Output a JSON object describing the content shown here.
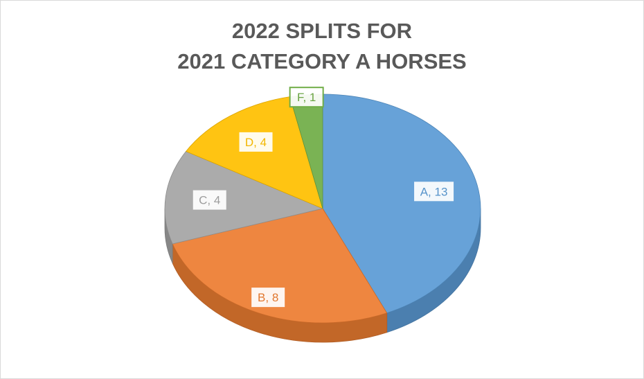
{
  "chart_data": {
    "type": "pie",
    "style": "3d",
    "title_lines": [
      "2022 SPLITS FOR",
      "2021 CATEGORY A HORSES"
    ],
    "categories": [
      "A",
      "B",
      "C",
      "D",
      "F"
    ],
    "values": [
      13,
      8,
      4,
      4,
      1
    ],
    "data_labels": [
      "A, 13",
      "B, 8",
      "C, 4",
      "D, 4",
      "F, 1"
    ],
    "colors": [
      "#5B9BD5",
      "#ED7D31",
      "#A5A5A5",
      "#FFC000",
      "#70AD47"
    ],
    "legend": "none"
  }
}
